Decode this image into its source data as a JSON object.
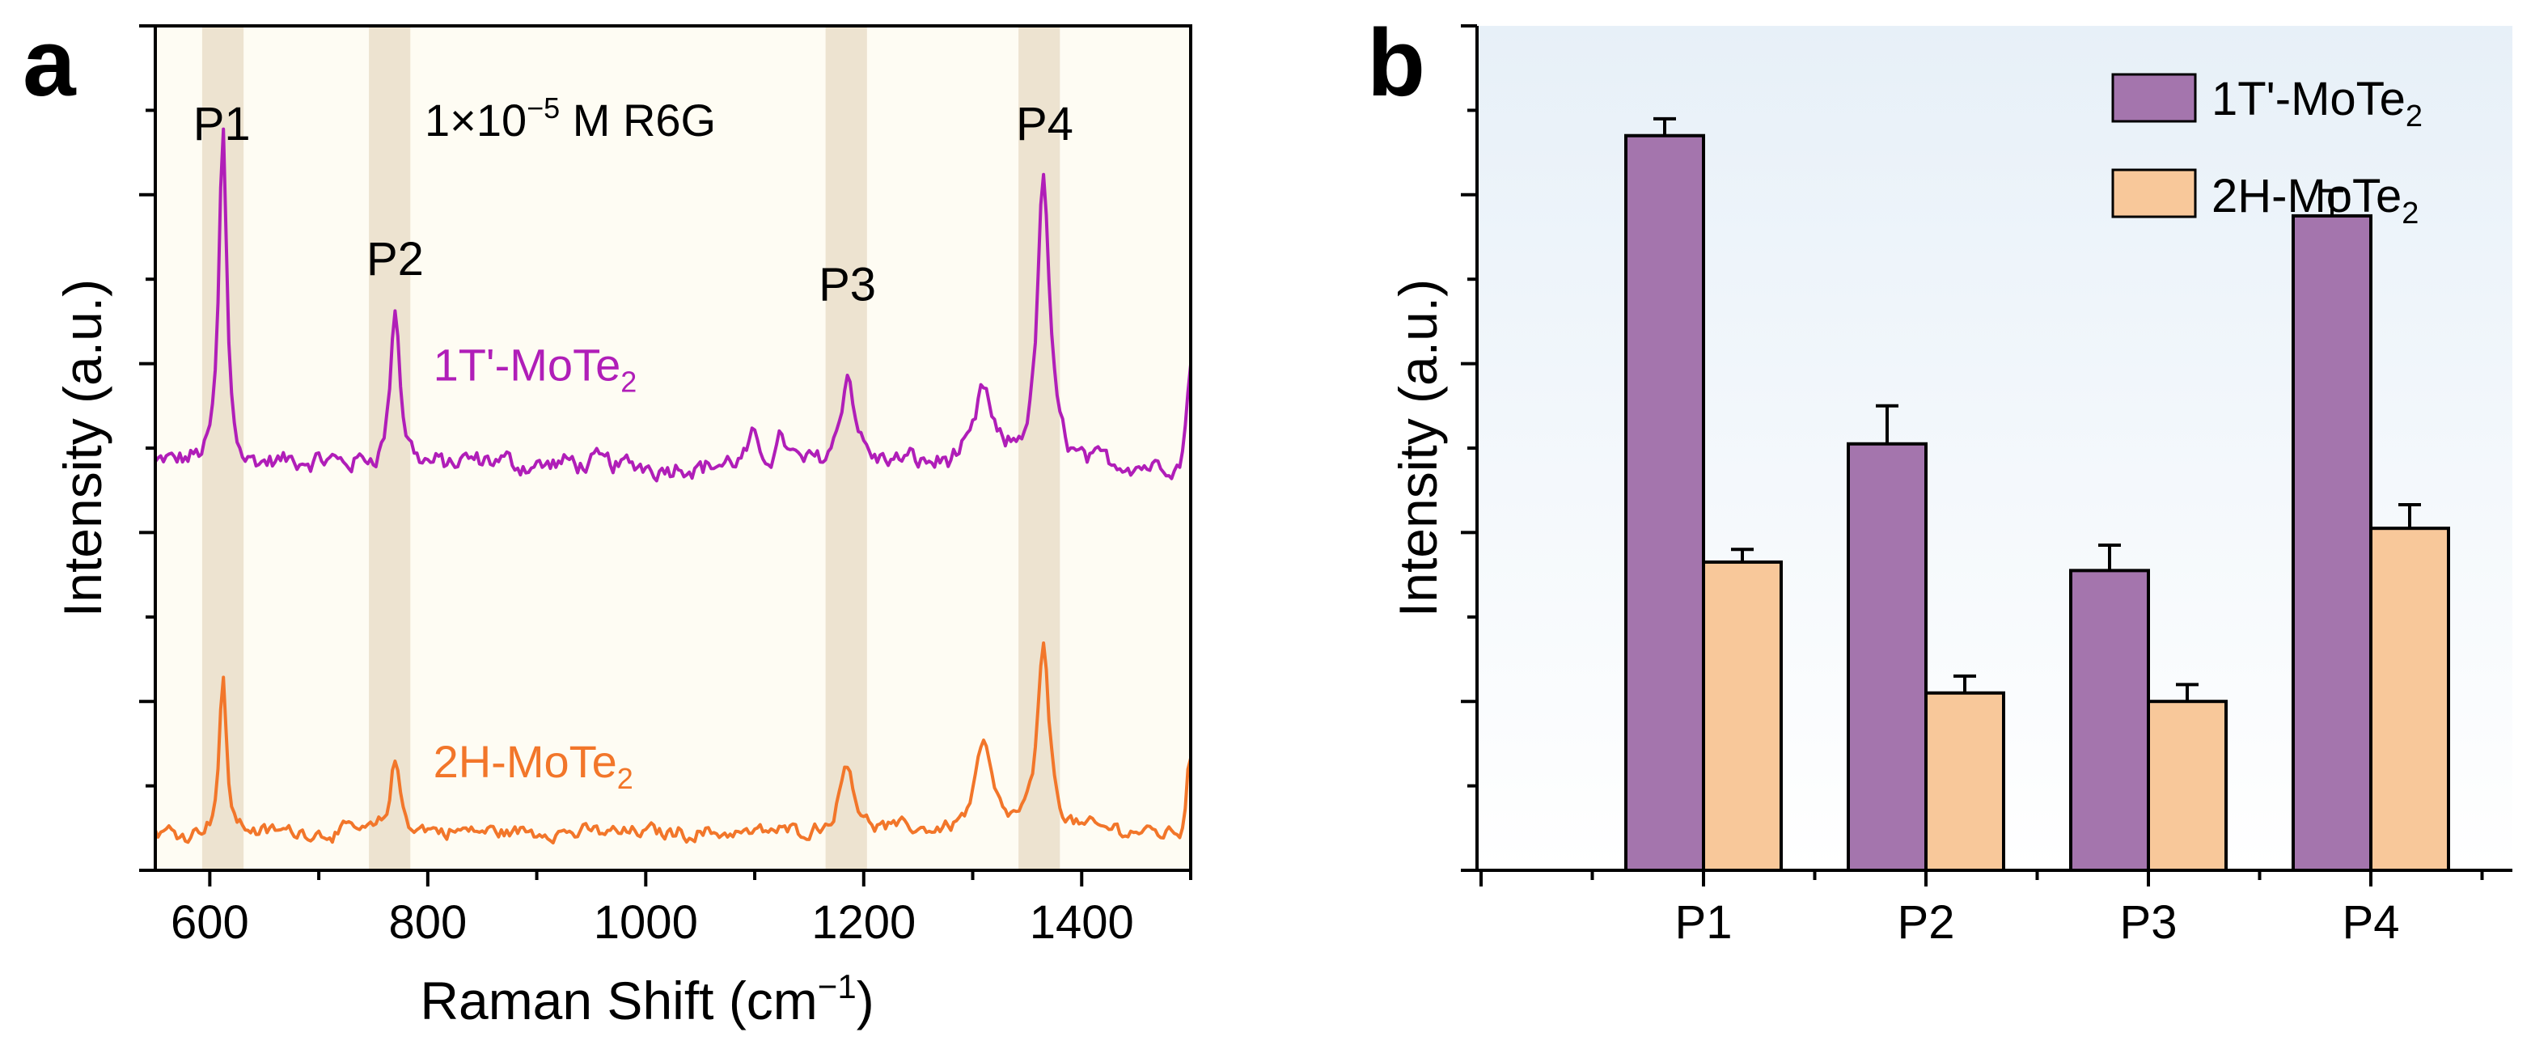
{
  "colors": {
    "purple_line": "#B01EB8",
    "orange_line": "#F2762A",
    "purple_bar": "#A475AD",
    "orange_bar": "#F8C89A",
    "highlight_band": "#EDE3D0",
    "panel_a_bg": "#FEFCF3",
    "panel_b_bg_top": "#E7F0F8",
    "panel_b_bg_bottom": "#FFFFFF"
  },
  "chart_data": [
    {
      "panel_label": "a",
      "type": "line",
      "title": "1×10⁻⁵ M R6G",
      "title_parts": {
        "pre": "1×10",
        "sup": "−5",
        "post": " M R6G"
      },
      "xlabel": "Raman Shift (cm⁻¹)",
      "xlabel_parts": {
        "pre": "Raman Shift (cm",
        "sup": "−1",
        "post": ")"
      },
      "ylabel": "Intensity (a.u.)",
      "xlim": [
        550,
        1500
      ],
      "ylim": [
        0,
        10
      ],
      "xticks": [
        600,
        800,
        1000,
        1200,
        1400
      ],
      "xtick_labels": [
        "600",
        "800",
        "1000",
        "1200",
        "1400"
      ],
      "highlight_bands": [
        {
          "label": "P1",
          "x_range": [
            593,
            631
          ]
        },
        {
          "label": "P2",
          "x_range": [
            746,
            784
          ]
        },
        {
          "label": "P3",
          "x_range": [
            1165,
            1203
          ]
        },
        {
          "label": "P4",
          "x_range": [
            1342,
            1380
          ]
        }
      ],
      "peak_labels": [
        {
          "label": "P1",
          "x": 611,
          "y": 8.65
        },
        {
          "label": "P2",
          "x": 770,
          "y": 7.05
        },
        {
          "label": "P3",
          "x": 1185,
          "y": 6.75
        },
        {
          "label": "P4",
          "x": 1366,
          "y": 8.65
        }
      ],
      "series": [
        {
          "name": "1T'-MoTe₂",
          "label_parts": {
            "pre": "1T'-MoTe",
            "sub": "2"
          },
          "label_position": {
            "x": 805,
            "y": 5.8
          },
          "baseline": 4.8,
          "peaks": [
            {
              "x": 612,
              "height": 4.0,
              "width": 4.2
            },
            {
              "x": 770,
              "height": 1.9,
              "width": 5
            },
            {
              "x": 1185,
              "height": 1.1,
              "width": 8
            },
            {
              "x": 1310,
              "height": 0.85,
              "width": 8
            },
            {
              "x": 1365,
              "height": 3.4,
              "width": 6.5
            },
            {
              "x": 1098,
              "height": 0.25,
              "width": 5
            },
            {
              "x": 1125,
              "height": 0.35,
              "width": 5
            }
          ],
          "end_rise": {
            "x": 1500,
            "height": 1.2,
            "width": 5
          },
          "noise_amplitude": 0.14
        },
        {
          "name": "2H-MoTe₂",
          "label_parts": {
            "pre": "2H-MoTe",
            "sub": "2"
          },
          "label_position": {
            "x": 805,
            "y": 1.1
          },
          "baseline": 0.45,
          "peaks": [
            {
              "x": 612,
              "height": 1.8,
              "width": 4
            },
            {
              "x": 770,
              "height": 0.85,
              "width": 5
            },
            {
              "x": 1185,
              "height": 0.85,
              "width": 8
            },
            {
              "x": 1310,
              "height": 1.05,
              "width": 9
            },
            {
              "x": 1365,
              "height": 2.15,
              "width": 6.5
            }
          ],
          "end_rise": {
            "x": 1500,
            "height": 0.95,
            "width": 5
          },
          "noise_amplitude": 0.1
        }
      ]
    },
    {
      "panel_label": "b",
      "type": "bar",
      "ylabel": "Intensity (a.u.)",
      "categories": [
        "P1",
        "P2",
        "P3",
        "P4"
      ],
      "ylim": [
        0,
        10
      ],
      "series": [
        {
          "name": "1T'-MoTe₂",
          "label_parts": {
            "pre": "1T'-MoTe",
            "sub": "2"
          },
          "values": [
            8.7,
            5.05,
            3.55,
            7.75
          ],
          "errors": [
            0.2,
            0.45,
            0.3,
            0.3
          ]
        },
        {
          "name": "2H-MoTe₂",
          "label_parts": {
            "pre": "2H-MoTe",
            "sub": "2"
          },
          "values": [
            3.65,
            2.1,
            2.0,
            4.05
          ],
          "errors": [
            0.15,
            0.2,
            0.2,
            0.28
          ]
        }
      ],
      "legend": "top-right"
    }
  ]
}
